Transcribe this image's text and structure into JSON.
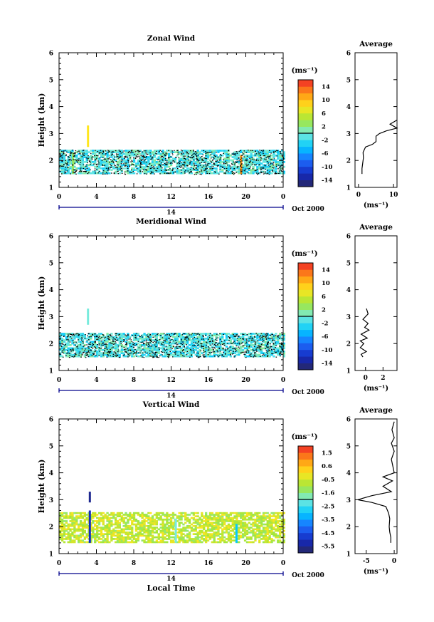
{
  "figure": {
    "panels": [
      {
        "title": "Zonal Wind",
        "ylabel": "Height (km)",
        "y_ticks": [
          "1",
          "2",
          "3",
          "4",
          "5",
          "6"
        ],
        "x_ticks": [
          "0",
          "4",
          "8",
          "12",
          "16",
          "20",
          "0"
        ],
        "day_label": "14",
        "date_label": "Oct 2000",
        "unit_label": "(ms⁻¹)",
        "colorbar_ticks": [
          "14",
          "10",
          "6",
          "2",
          "-2",
          "-6",
          "-10",
          "-14"
        ],
        "colorbar_range": [
          -16,
          16
        ],
        "profile_title": "Average",
        "profile_x_ticks": [
          "0",
          "10"
        ],
        "profile_xlabel": "(ms⁻¹)"
      },
      {
        "title": "Meridional Wind",
        "ylabel": "Height (km)",
        "y_ticks": [
          "1",
          "2",
          "3",
          "4",
          "5",
          "6"
        ],
        "x_ticks": [
          "0",
          "4",
          "8",
          "12",
          "16",
          "20",
          "0"
        ],
        "day_label": "14",
        "date_label": "Oct 2000",
        "unit_label": "(ms⁻¹)",
        "colorbar_ticks": [
          "14",
          "10",
          "6",
          "2",
          "-2",
          "-6",
          "-10",
          "-14"
        ],
        "colorbar_range": [
          -16,
          16
        ],
        "profile_title": "Average",
        "profile_x_ticks": [
          "0",
          "2"
        ],
        "profile_xlabel": "(ms⁻¹)"
      },
      {
        "title": "Vertical Wind",
        "ylabel": "Height (km)",
        "y_ticks": [
          "1",
          "2",
          "3",
          "4",
          "5",
          "6"
        ],
        "x_ticks": [
          "0",
          "4",
          "8",
          "12",
          "16",
          "20",
          "0"
        ],
        "day_label": "14",
        "date_label": "Oct 2000",
        "xlabel": "Local Time",
        "unit_label": "(ms⁻¹)",
        "colorbar_ticks": [
          "1.5",
          "0.6",
          "-0.5",
          "-1.6",
          "-2.5",
          "-3.5",
          "-4.5",
          "-5.5"
        ],
        "colorbar_range": [
          -6,
          2
        ],
        "profile_title": "Average",
        "profile_x_ticks": [
          "-5",
          "0"
        ],
        "profile_xlabel": "(ms⁻¹)"
      }
    ]
  },
  "chart_data": [
    {
      "type": "heatmap",
      "title": "Zonal Wind",
      "xlabel": "",
      "ylabel": "Height (km)",
      "xlim": [
        0,
        24
      ],
      "ylim": [
        1,
        6
      ],
      "colorbar_label": "(ms⁻¹)",
      "colorbar_range": [
        -16,
        16
      ],
      "data_height_range_km": [
        1.5,
        2.4
      ],
      "typical_value": -1,
      "features": [
        {
          "time_h": 3.1,
          "height_km": [
            2.5,
            3.3
          ],
          "value": 8
        },
        {
          "time_h": 1.5,
          "height_km": [
            1.5,
            2.3
          ],
          "value": 3
        },
        {
          "time_h": 19.5,
          "height_km": [
            1.5,
            2.2
          ],
          "value": 12
        }
      ],
      "profile": {
        "title": "Average",
        "xlim": [
          -1,
          11
        ],
        "ylim": [
          1,
          6
        ],
        "x": [
          1,
          1,
          1.2,
          1.4,
          1.3,
          2,
          4,
          5,
          5,
          6,
          8,
          11,
          9,
          11
        ],
        "height_km": [
          1.5,
          1.7,
          1.9,
          2.1,
          2.3,
          2.5,
          2.6,
          2.7,
          2.9,
          3.0,
          3.1,
          3.2,
          3.35,
          3.5
        ]
      }
    },
    {
      "type": "heatmap",
      "title": "Meridional Wind",
      "xlabel": "",
      "ylabel": "Height (km)",
      "xlim": [
        0,
        24
      ],
      "ylim": [
        1,
        6
      ],
      "colorbar_label": "(ms⁻¹)",
      "colorbar_range": [
        -16,
        16
      ],
      "data_height_range_km": [
        1.5,
        2.4
      ],
      "typical_value": -1,
      "features": [
        {
          "time_h": 3.1,
          "height_km": [
            2.7,
            3.3
          ],
          "value": 0
        }
      ],
      "profile": {
        "title": "Average",
        "xlim": [
          -1.2,
          3.6
        ],
        "ylim": [
          1,
          6
        ],
        "x": [
          -0.3,
          -0.5,
          0.1,
          -0.6,
          -0.2,
          -0.6,
          0.2,
          -0.5,
          0.4,
          -0.1,
          0.3,
          -0.3,
          0.3,
          0.1
        ],
        "height_km": [
          1.5,
          1.6,
          1.7,
          1.85,
          2.0,
          2.1,
          2.2,
          2.35,
          2.5,
          2.6,
          2.75,
          2.9,
          3.1,
          3.3
        ]
      }
    },
    {
      "type": "heatmap",
      "title": "Vertical Wind",
      "xlabel": "Local Time",
      "ylabel": "Height (km)",
      "xlim": [
        0,
        24
      ],
      "ylim": [
        1,
        6
      ],
      "colorbar_label": "(ms⁻¹)",
      "colorbar_range": [
        -6,
        2
      ],
      "data_height_range_km": [
        1.4,
        2.5
      ],
      "typical_value": -0.7,
      "features": [
        {
          "time_h": 3.3,
          "height_km": [
            1.4,
            2.6
          ],
          "value": -5
        },
        {
          "time_h": 3.3,
          "height_km": [
            2.9,
            3.3
          ],
          "value": -5.5
        },
        {
          "time_h": 19.0,
          "height_km": [
            1.4,
            2.1
          ],
          "value": -3
        },
        {
          "time_h": 12.5,
          "height_km": [
            1.4,
            2.3
          ],
          "value": -2
        }
      ],
      "profile": {
        "title": "Average",
        "xlim": [
          -7,
          0.5
        ],
        "ylim": [
          1,
          6
        ],
        "x": [
          -0.6,
          -0.6,
          -0.8,
          -0.9,
          -0.8,
          -1.0,
          -1.5,
          -4,
          -6.5,
          -4,
          -0.5,
          -2,
          -0.3,
          -2,
          0,
          -0.5,
          0,
          -0.5,
          0,
          -0.4,
          0
        ],
        "height_km": [
          1.4,
          1.6,
          1.8,
          2.0,
          2.3,
          2.5,
          2.75,
          2.9,
          3.0,
          3.15,
          3.3,
          3.5,
          3.7,
          3.85,
          4.0,
          4.5,
          4.8,
          5.1,
          5.3,
          5.6,
          5.9
        ]
      }
    }
  ]
}
